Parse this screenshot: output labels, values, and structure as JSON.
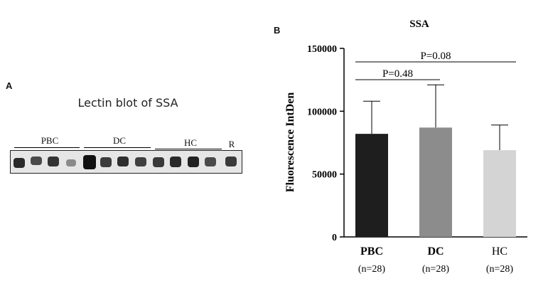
{
  "panel_a": {
    "letter": "A",
    "title": "Lectin blot of SSA",
    "groups": [
      "PBC",
      "DC",
      "HC",
      "R"
    ]
  },
  "panel_b": {
    "letter": "B"
  },
  "chart_data": {
    "type": "bar",
    "title": "SSA",
    "ylabel": "Fluorescence IntDen",
    "xlabel": "",
    "categories": [
      "PBC",
      "DC",
      "HC"
    ],
    "category_sublabels": [
      "(n=28)",
      "(n=28)",
      "(n=28)"
    ],
    "values": [
      82000,
      87000,
      69000
    ],
    "error_upper": [
      108000,
      121000,
      89000
    ],
    "bar_colors": [
      "#1e1e1e",
      "#8c8c8c",
      "#d4d4d4"
    ],
    "ylim": [
      0,
      150000
    ],
    "yticks": [
      0,
      50000,
      100000,
      150000
    ],
    "grid": false,
    "annotations": [
      {
        "text": "P=0.48",
        "from": 0,
        "to": 1
      },
      {
        "text": "P=0.08",
        "from": 0,
        "to": 2
      }
    ]
  }
}
